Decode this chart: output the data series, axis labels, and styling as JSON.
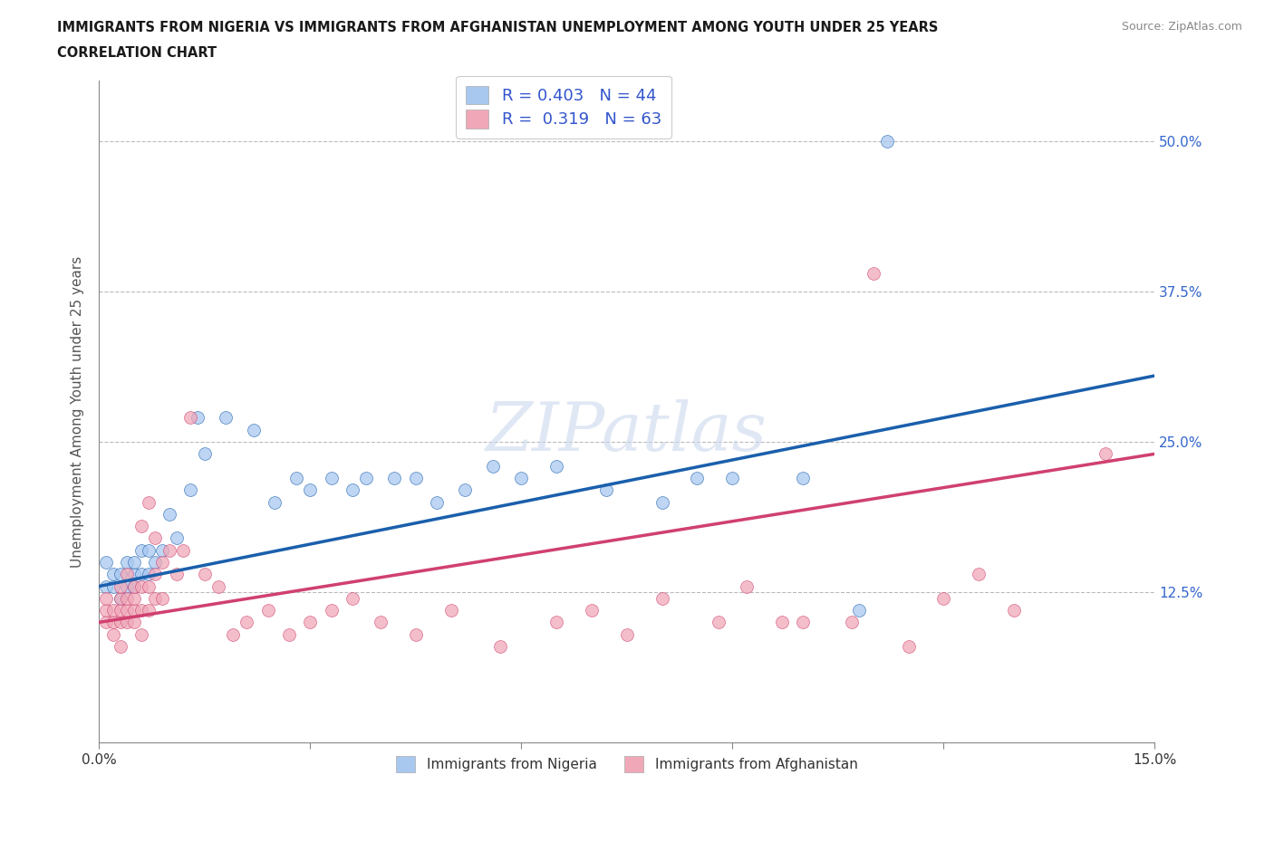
{
  "title_line1": "IMMIGRANTS FROM NIGERIA VS IMMIGRANTS FROM AFGHANISTAN UNEMPLOYMENT AMONG YOUTH UNDER 25 YEARS",
  "title_line2": "CORRELATION CHART",
  "source": "Source: ZipAtlas.com",
  "ylabel": "Unemployment Among Youth under 25 years",
  "xlim": [
    0.0,
    0.15
  ],
  "ylim": [
    0.0,
    0.55
  ],
  "watermark": "ZIPatlas",
  "legend_nigeria_R": "0.403",
  "legend_nigeria_N": "44",
  "legend_afghanistan_R": "0.319",
  "legend_afghanistan_N": "63",
  "color_nigeria": "#a8c8f0",
  "color_afghanistan": "#f0a8b8",
  "color_nigeria_line": "#1a5fac",
  "color_afghanistan_line": "#d04070",
  "color_right_axis": "#3366cc",
  "nigeria_x": [
    0.001,
    0.001,
    0.002,
    0.002,
    0.003,
    0.003,
    0.004,
    0.004,
    0.005,
    0.005,
    0.005,
    0.006,
    0.006,
    0.007,
    0.007,
    0.008,
    0.009,
    0.01,
    0.011,
    0.013,
    0.014,
    0.015,
    0.018,
    0.022,
    0.025,
    0.028,
    0.03,
    0.033,
    0.036,
    0.038,
    0.042,
    0.045,
    0.048,
    0.052,
    0.056,
    0.06,
    0.065,
    0.072,
    0.08,
    0.085,
    0.09,
    0.1,
    0.108,
    0.112
  ],
  "nigeria_y": [
    0.13,
    0.15,
    0.13,
    0.14,
    0.12,
    0.14,
    0.13,
    0.15,
    0.14,
    0.15,
    0.13,
    0.14,
    0.16,
    0.14,
    0.16,
    0.15,
    0.16,
    0.19,
    0.17,
    0.21,
    0.27,
    0.24,
    0.27,
    0.26,
    0.2,
    0.22,
    0.21,
    0.22,
    0.21,
    0.22,
    0.22,
    0.22,
    0.2,
    0.21,
    0.23,
    0.22,
    0.23,
    0.21,
    0.2,
    0.22,
    0.22,
    0.22,
    0.11,
    0.5
  ],
  "afghanistan_x": [
    0.001,
    0.001,
    0.001,
    0.002,
    0.002,
    0.002,
    0.003,
    0.003,
    0.003,
    0.003,
    0.003,
    0.004,
    0.004,
    0.004,
    0.004,
    0.005,
    0.005,
    0.005,
    0.005,
    0.006,
    0.006,
    0.006,
    0.006,
    0.007,
    0.007,
    0.007,
    0.008,
    0.008,
    0.008,
    0.009,
    0.009,
    0.01,
    0.011,
    0.012,
    0.013,
    0.015,
    0.017,
    0.019,
    0.021,
    0.024,
    0.027,
    0.03,
    0.033,
    0.036,
    0.04,
    0.045,
    0.05,
    0.057,
    0.065,
    0.07,
    0.075,
    0.08,
    0.088,
    0.092,
    0.097,
    0.1,
    0.107,
    0.11,
    0.115,
    0.12,
    0.125,
    0.13,
    0.143
  ],
  "afghanistan_y": [
    0.1,
    0.11,
    0.12,
    0.09,
    0.1,
    0.11,
    0.08,
    0.1,
    0.11,
    0.12,
    0.13,
    0.1,
    0.11,
    0.12,
    0.14,
    0.1,
    0.11,
    0.12,
    0.13,
    0.09,
    0.11,
    0.13,
    0.18,
    0.11,
    0.13,
    0.2,
    0.12,
    0.14,
    0.17,
    0.12,
    0.15,
    0.16,
    0.14,
    0.16,
    0.27,
    0.14,
    0.13,
    0.09,
    0.1,
    0.11,
    0.09,
    0.1,
    0.11,
    0.12,
    0.1,
    0.09,
    0.11,
    0.08,
    0.1,
    0.11,
    0.09,
    0.12,
    0.1,
    0.13,
    0.1,
    0.1,
    0.1,
    0.39,
    0.08,
    0.12,
    0.14,
    0.11,
    0.24
  ],
  "nigeria_line_x0": 0.0,
  "nigeria_line_y0": 0.13,
  "nigeria_line_x1": 0.15,
  "nigeria_line_y1": 0.305,
  "afghanistan_line_x0": 0.0,
  "afghanistan_line_y0": 0.1,
  "afghanistan_line_x1": 0.15,
  "afghanistan_line_y1": 0.24
}
